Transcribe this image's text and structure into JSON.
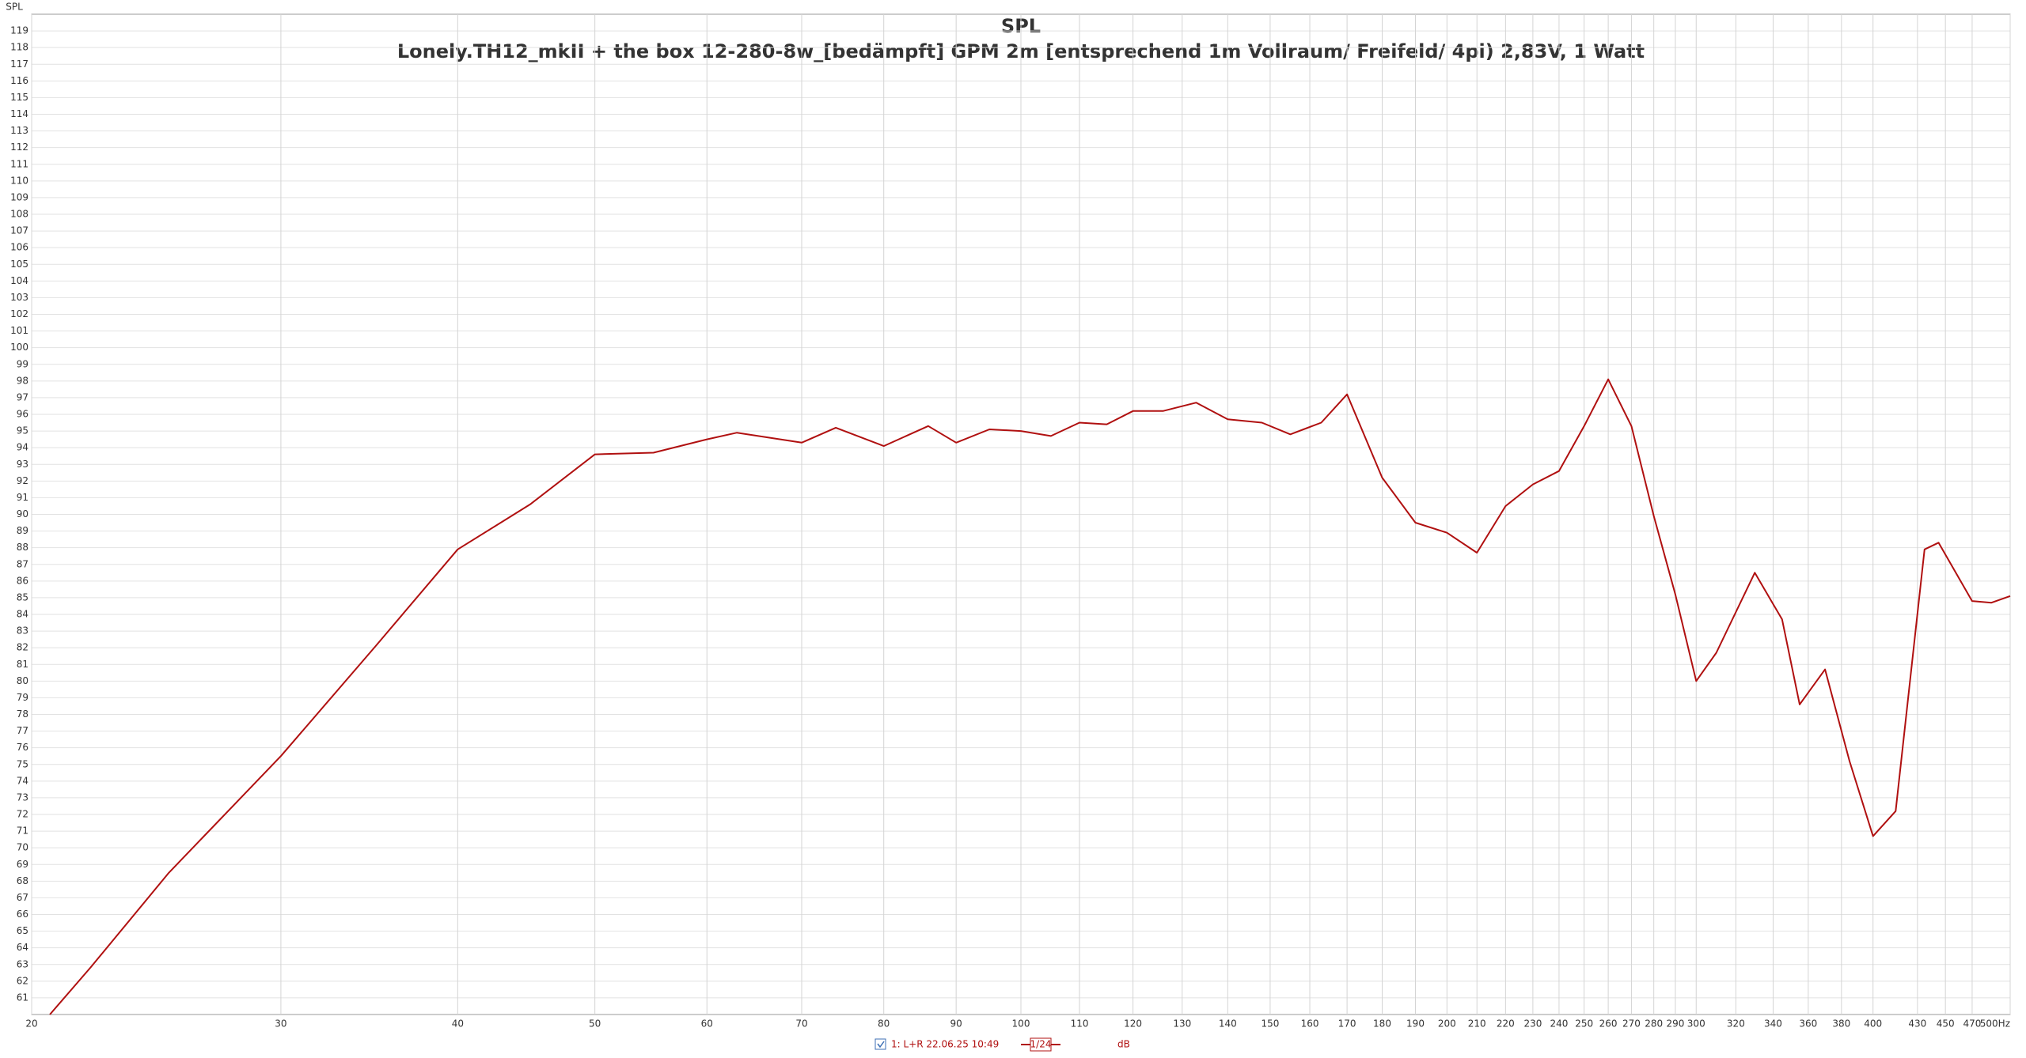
{
  "chart_data": {
    "type": "line",
    "title": "SPL",
    "subtitle": "Lonely.TH12_mkII + the box 12-280-8w_[bedämpft] GPM 2m [entsprechend 1m Vollraum/ Freifeld/ 4pi) 2,83V, 1 Watt",
    "y_label": "SPL",
    "x_scale": "log",
    "grid": true,
    "xlim": [
      20,
      500
    ],
    "ylim": [
      60,
      120
    ],
    "xticks": [
      20,
      30,
      40,
      50,
      60,
      70,
      80,
      90,
      100,
      110,
      120,
      130,
      140,
      150,
      160,
      170,
      180,
      190,
      200,
      210,
      220,
      230,
      240,
      250,
      260,
      270,
      280,
      290,
      300,
      320,
      340,
      360,
      380,
      400,
      430,
      450,
      470,
      {
        "value": 500,
        "label": "500Hz"
      }
    ],
    "yticks": [
      61,
      62,
      63,
      64,
      65,
      66,
      67,
      68,
      69,
      70,
      71,
      72,
      73,
      74,
      75,
      76,
      77,
      78,
      79,
      80,
      81,
      82,
      83,
      84,
      85,
      86,
      87,
      88,
      89,
      90,
      91,
      92,
      93,
      94,
      95,
      96,
      97,
      98,
      99,
      100,
      101,
      102,
      103,
      104,
      105,
      106,
      107,
      108,
      109,
      110,
      111,
      112,
      113,
      114,
      115,
      116,
      117,
      118,
      119
    ],
    "series": [
      {
        "name": "1: L+R 22.06.25 10:49",
        "color": "#b01010",
        "x": [
          20.6,
          22,
          25,
          30,
          35,
          40,
          45,
          50,
          55,
          60,
          63,
          70,
          74,
          80,
          86,
          90,
          95,
          100,
          105,
          110,
          115,
          120,
          126,
          133,
          140,
          148,
          155,
          163,
          170,
          180,
          190,
          200,
          210,
          220,
          230,
          240,
          250,
          260,
          270,
          280,
          290,
          300,
          310,
          330,
          345,
          355,
          370,
          385,
          400,
          415,
          435,
          445,
          470,
          485,
          500
        ],
        "values": [
          60,
          62.8,
          68.5,
          75.5,
          82.1,
          87.9,
          90.6,
          93.6,
          93.7,
          94.5,
          94.9,
          94.3,
          95.2,
          94.1,
          95.3,
          94.3,
          95.1,
          95.0,
          94.7,
          95.5,
          95.4,
          96.2,
          96.2,
          96.7,
          95.7,
          95.5,
          94.8,
          95.5,
          97.2,
          92.2,
          89.5,
          88.9,
          87.7,
          90.5,
          91.8,
          92.6,
          95.3,
          98.1,
          95.3,
          89.9,
          85.2,
          80.0,
          81.7,
          86.5,
          83.7,
          78.6,
          80.7,
          75.2,
          70.7,
          72.2,
          87.9,
          88.3,
          84.8,
          84.7,
          85.1
        ]
      }
    ],
    "smoothing": "1/24",
    "units": "dB"
  }
}
